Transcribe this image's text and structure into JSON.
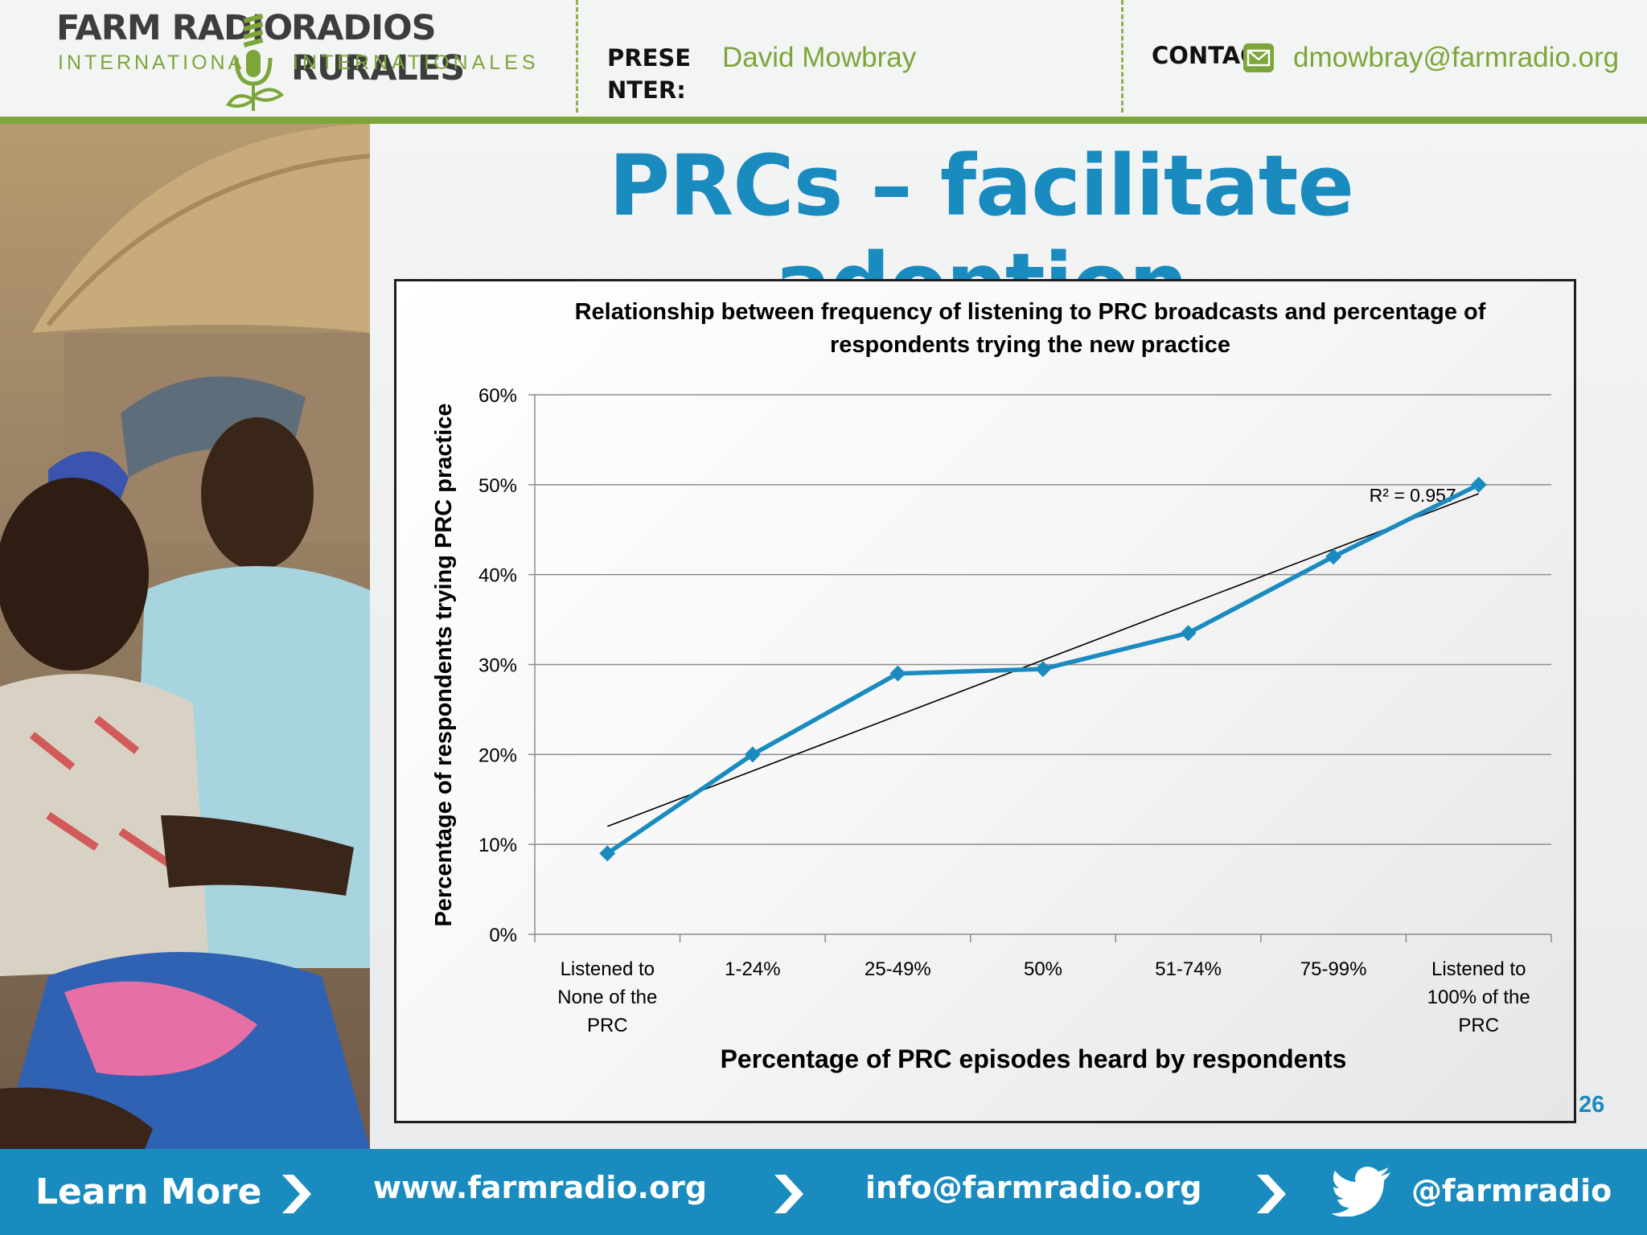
{
  "header": {
    "logo_left_line1": "FARM RADIO",
    "logo_left_line2": "INTERNATIONAL",
    "logo_right_line1": "RADIOS RURALES",
    "logo_right_line2": "INTERNATIONALES",
    "presenter_label": "PRESENTER:",
    "presenter_name": "David Mowbray",
    "contact_label": "CONTACT:",
    "contact_email": "dmowbray@farmradio.org",
    "mail_icon": "mail-icon"
  },
  "slide": {
    "title": "PRCs – facilitate adoption",
    "page_number": "26"
  },
  "chart_data": {
    "type": "line",
    "title_line1": "Relationship between frequency of listening to PRC broadcasts and percentage of",
    "title_line2": "respondents trying the new practice",
    "xlabel": "Percentage of PRC episodes heard by respondents",
    "ylabel": "Percentage of respondents trying PRC practice",
    "categories": [
      [
        "Listened to",
        "None of the",
        "PRC"
      ],
      [
        "1-24%"
      ],
      [
        "25-49%"
      ],
      [
        "50%"
      ],
      [
        "51-74%"
      ],
      [
        "75-99%"
      ],
      [
        "Listened to",
        "100% of the",
        "PRC"
      ]
    ],
    "values": [
      0.09,
      0.2,
      0.29,
      0.295,
      0.335,
      0.42,
      0.5
    ],
    "yticks": [
      "0%",
      "10%",
      "20%",
      "30%",
      "40%",
      "50%",
      "60%"
    ],
    "ylim": [
      0,
      0.6
    ],
    "trendline": {
      "start": 0.12,
      "end": 0.49,
      "label": "R² = 0.957"
    },
    "grid": true,
    "legend": "none",
    "series_color": "#1a8bbf"
  },
  "footer": {
    "learn_more": "Learn More",
    "website": "www.farmradio.org",
    "email": "info@farmradio.org",
    "twitter": "@farmradio",
    "chevron_icon": "chevron-right-icon",
    "twitter_icon": "twitter-bird-icon"
  },
  "colors": {
    "accent_blue": "#1a8bbf",
    "accent_green": "#7ca63a"
  }
}
